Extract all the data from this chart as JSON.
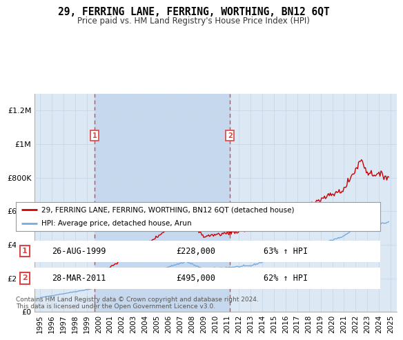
{
  "title": "29, FERRING LANE, FERRING, WORTHING, BN12 6QT",
  "subtitle": "Price paid vs. HM Land Registry's House Price Index (HPI)",
  "plot_bg_color": "#dce9f5",
  "ylim": [
    0,
    1300000
  ],
  "yticks": [
    0,
    200000,
    400000,
    600000,
    800000,
    1000000,
    1200000
  ],
  "ytick_labels": [
    "£0",
    "£200K",
    "£400K",
    "£600K",
    "£800K",
    "£1M",
    "£1.2M"
  ],
  "grid_color": "#c8d8e8",
  "red_line_color": "#cc0000",
  "blue_line_color": "#7aaadd",
  "shade_color": "#c5d8ee",
  "dashed_line_color": "#dd4444",
  "legend_label_red": "29, FERRING LANE, FERRING, WORTHING, BN12 6QT (detached house)",
  "legend_label_blue": "HPI: Average price, detached house, Arun",
  "sale1_label": "1",
  "sale1_date": "26-AUG-1999",
  "sale1_price": "£228,000",
  "sale1_hpi": "63% ↑ HPI",
  "sale1_year": 1999.65,
  "sale1_value": 228000,
  "sale2_label": "2",
  "sale2_date": "28-MAR-2011",
  "sale2_price": "£495,000",
  "sale2_hpi": "62% ↑ HPI",
  "sale2_year": 2011.24,
  "sale2_value": 495000,
  "footer": "Contains HM Land Registry data © Crown copyright and database right 2024.\nThis data is licensed under the Open Government Licence v3.0.",
  "xlim_left": 1994.5,
  "xlim_right": 2025.5,
  "xtick_years": [
    1995,
    1996,
    1997,
    1998,
    1999,
    2000,
    2001,
    2002,
    2003,
    2004,
    2005,
    2006,
    2007,
    2008,
    2009,
    2010,
    2011,
    2012,
    2013,
    2014,
    2015,
    2016,
    2017,
    2018,
    2019,
    2020,
    2021,
    2022,
    2023,
    2024,
    2025
  ]
}
